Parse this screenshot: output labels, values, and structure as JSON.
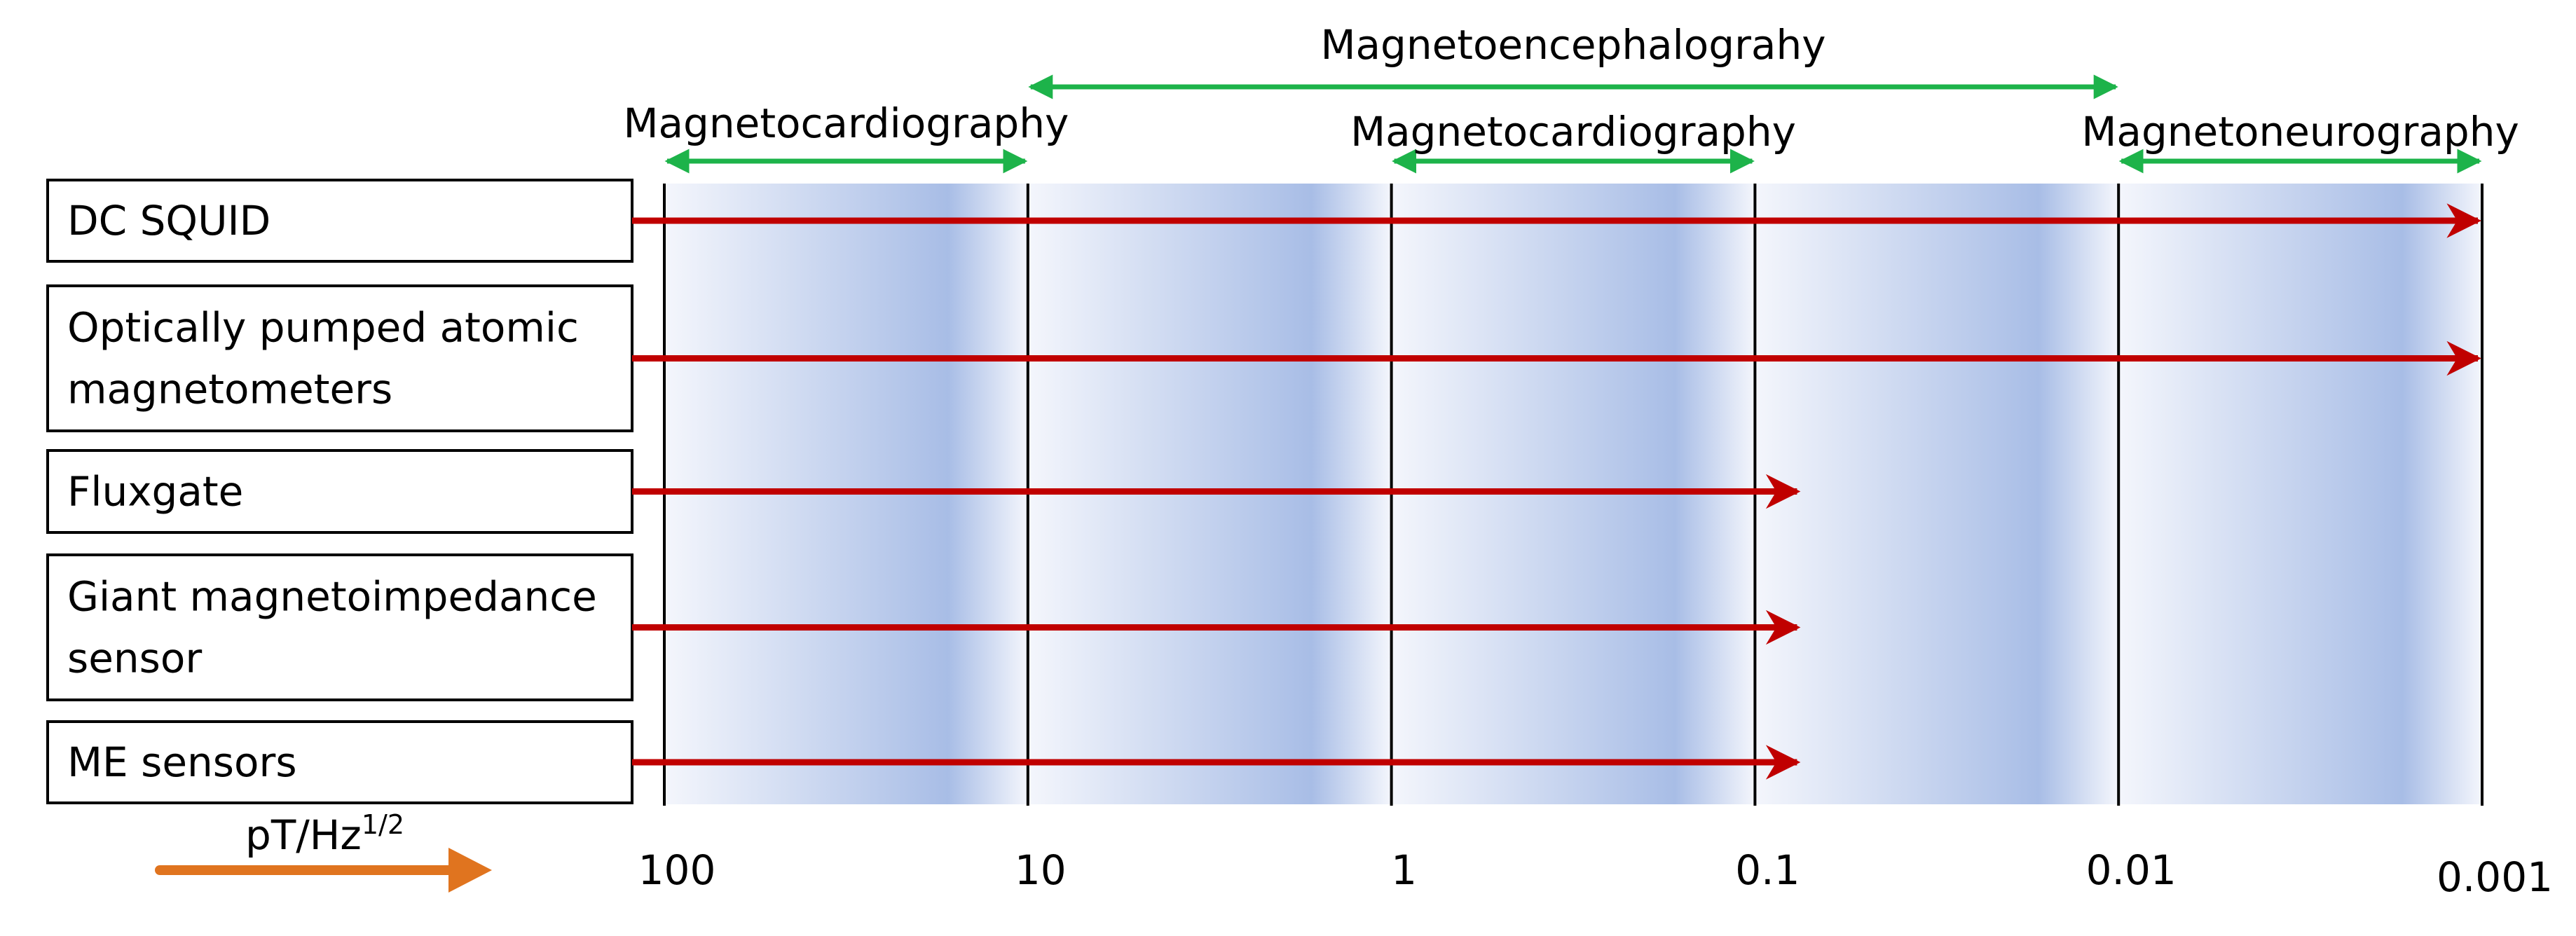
{
  "unit": {
    "base": "pT/Hz",
    "exponent": "1/2"
  },
  "colors": {
    "band_light": "#f4f6fc",
    "band_dark": "#a8bde6",
    "sensor_arrow": "#c00000",
    "application_arrow": "#1db34a",
    "unit_arrow": "#e0741f"
  },
  "scale": {
    "type": "log",
    "direction": "decreasing",
    "ticks": [
      {
        "value": 100,
        "label": "100"
      },
      {
        "value": 10,
        "label": "10"
      },
      {
        "value": 1,
        "label": "1"
      },
      {
        "value": 0.1,
        "label": "0.1"
      },
      {
        "value": 0.01,
        "label": "0.01"
      },
      {
        "value": 0.001,
        "label": "0.001"
      }
    ]
  },
  "sensors": [
    {
      "label_lines": [
        "DC SQUID"
      ],
      "reach": 0.001
    },
    {
      "label_lines": [
        "Optically pumped atomic",
        "magnetometers"
      ],
      "reach": 0.001
    },
    {
      "label_lines": [
        "Fluxgate"
      ],
      "reach": 0.1
    },
    {
      "label_lines": [
        "Giant magnetoimpedance",
        "sensor"
      ],
      "reach": 0.1
    },
    {
      "label_lines": [
        "ME sensors"
      ],
      "reach": 0.1
    }
  ],
  "applications": [
    {
      "label": "Magnetoencephalograhy",
      "from": 10,
      "to": 0.01,
      "row": "top"
    },
    {
      "label": "Magnetocardiography",
      "from": 100,
      "to": 10,
      "row": "lower"
    },
    {
      "label": "Magnetocardiography",
      "from": 1,
      "to": 0.1,
      "row": "lower"
    },
    {
      "label": "Magnetoneurography",
      "from": 0.01,
      "to": 0.001,
      "row": "lower"
    }
  ]
}
